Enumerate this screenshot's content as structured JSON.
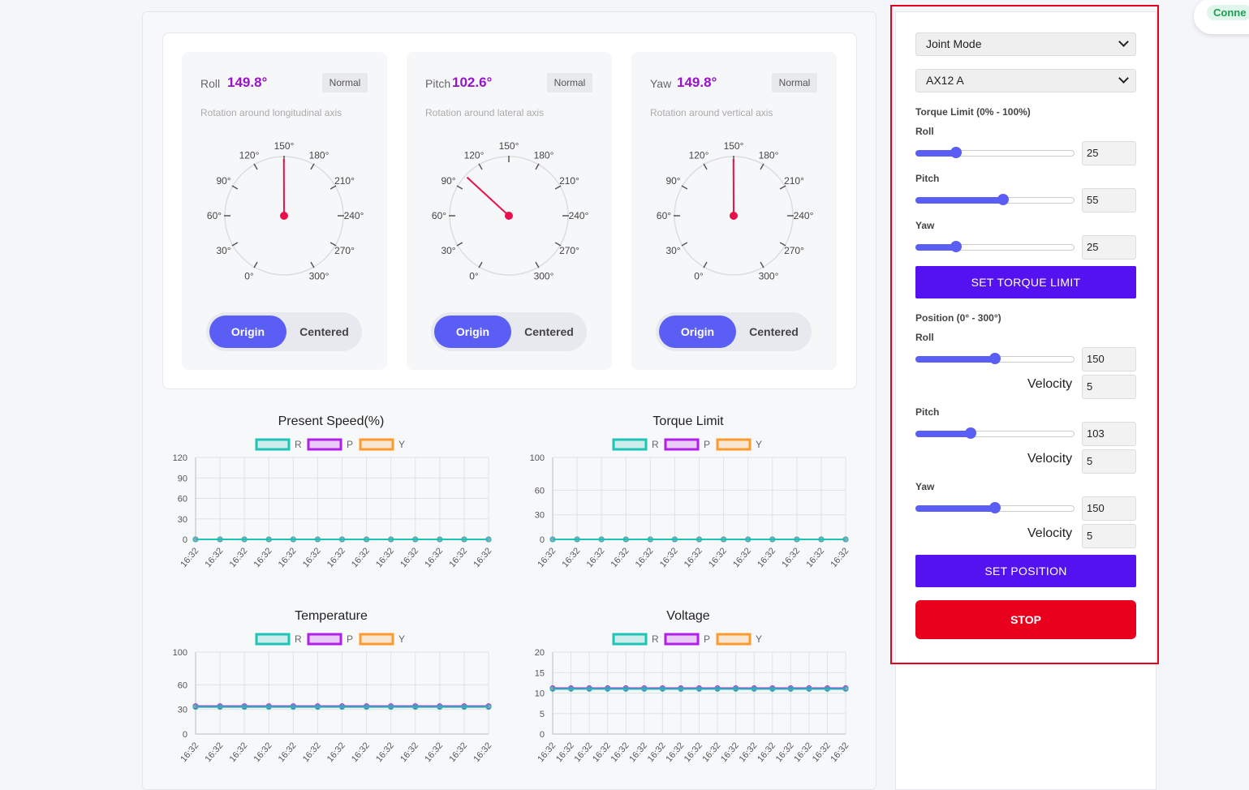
{
  "gauges": [
    {
      "name": "Roll",
      "value": "149.8°",
      "angle": 149.8,
      "status": "Normal",
      "description": "Rotation around longitudinal axis",
      "toggle": {
        "origin": "Origin",
        "centered": "Centered"
      }
    },
    {
      "name": "Pitch",
      "value": "102.6°",
      "angle": 102.6,
      "status": "Normal",
      "description": "Rotation around lateral axis",
      "toggle": {
        "origin": "Origin",
        "centered": "Centered"
      }
    },
    {
      "name": "Yaw",
      "value": "149.8°",
      "angle": 149.8,
      "status": "Normal",
      "description": "Rotation around vertical axis",
      "toggle": {
        "origin": "Origin",
        "centered": "Centered"
      }
    }
  ],
  "gauge_ticks": [
    "0°",
    "30°",
    "60°",
    "90°",
    "120°",
    "150°",
    "180°",
    "210°",
    "240°",
    "270°",
    "300°"
  ],
  "chart_data": [
    {
      "type": "line",
      "title": "Present Speed(%)",
      "yticks": [
        0,
        30,
        60,
        90,
        120
      ],
      "ylim": [
        0,
        120
      ],
      "x": [
        "16:32",
        "16:32",
        "16:32",
        "16:32",
        "16:32",
        "16:32",
        "16:32",
        "16:32",
        "16:32",
        "16:32",
        "16:32",
        "16:32",
        "16:32"
      ],
      "series": [
        {
          "name": "R",
          "values": [
            0,
            0,
            0,
            0,
            0,
            0,
            0,
            0,
            0,
            0,
            0,
            0,
            0
          ]
        },
        {
          "name": "P",
          "values": [
            0,
            0,
            0,
            0,
            0,
            0,
            0,
            0,
            0,
            0,
            0,
            0,
            0
          ]
        },
        {
          "name": "Y",
          "values": [
            0,
            0,
            0,
            0,
            0,
            0,
            0,
            0,
            0,
            0,
            0,
            0,
            0
          ]
        }
      ]
    },
    {
      "type": "line",
      "title": "Torque Limit",
      "yticks": [
        0,
        30,
        60,
        100
      ],
      "ylim": [
        0,
        100
      ],
      "x": [
        "16:32",
        "16:32",
        "16:32",
        "16:32",
        "16:32",
        "16:32",
        "16:32",
        "16:32",
        "16:32",
        "16:32",
        "16:32",
        "16:32",
        "16:32"
      ],
      "series": [
        {
          "name": "R",
          "values": [
            0,
            0,
            0,
            0,
            0,
            0,
            0,
            0,
            0,
            0,
            0,
            0,
            0
          ]
        },
        {
          "name": "P",
          "values": [
            0,
            0,
            0,
            0,
            0,
            0,
            0,
            0,
            0,
            0,
            0,
            0,
            0
          ]
        },
        {
          "name": "Y",
          "values": [
            0,
            0,
            0,
            0,
            0,
            0,
            0,
            0,
            0,
            0,
            0,
            0,
            0
          ]
        }
      ]
    },
    {
      "type": "line",
      "title": "Temperature",
      "yticks": [
        0,
        30,
        60,
        100
      ],
      "ylim": [
        0,
        100
      ],
      "x": [
        "16:32",
        "16:32",
        "16:32",
        "16:32",
        "16:32",
        "16:32",
        "16:32",
        "16:32",
        "16:32",
        "16:32",
        "16:32",
        "16:32",
        "16:32"
      ],
      "series": [
        {
          "name": "R",
          "values": [
            33,
            33,
            33,
            33,
            33,
            33,
            33,
            33,
            33,
            33,
            33,
            33,
            33
          ]
        },
        {
          "name": "P",
          "values": [
            34,
            34,
            34,
            34,
            34,
            34,
            34,
            34,
            34,
            34,
            34,
            34,
            34
          ]
        },
        {
          "name": "Y",
          "values": [
            33,
            33,
            33,
            33,
            33,
            33,
            33,
            33,
            33,
            33,
            33,
            33,
            33
          ]
        }
      ]
    },
    {
      "type": "line",
      "title": "Voltage",
      "yticks": [
        0,
        5,
        10,
        15,
        20
      ],
      "ylim": [
        0,
        20
      ],
      "x": [
        "16:32",
        "16:32",
        "16:32",
        "16:32",
        "16:32",
        "16:32",
        "16:32",
        "16:32",
        "16:32",
        "16:32",
        "16:32",
        "16:32",
        "16:32",
        "16:32",
        "16:32",
        "16:32",
        "16:32"
      ],
      "series": [
        {
          "name": "R",
          "values": [
            11,
            11,
            11,
            11,
            11,
            11,
            11,
            11,
            11,
            11,
            11,
            11,
            11,
            11,
            11,
            11,
            11
          ]
        },
        {
          "name": "P",
          "values": [
            11.2,
            11.2,
            11.2,
            11.2,
            11.2,
            11.2,
            11.2,
            11.2,
            11.2,
            11.2,
            11.2,
            11.2,
            11.2,
            11.2,
            11.2,
            11.2,
            11.2
          ]
        },
        {
          "name": "Y",
          "values": [
            11.2,
            11.2,
            11.2,
            11.2,
            11.2,
            11.2,
            11.2,
            11.2,
            11.2,
            11.2,
            11.2,
            11.2,
            11.2,
            11.2,
            11.2,
            11.2,
            11.2
          ]
        }
      ]
    }
  ],
  "series_colors": {
    "R": "#1fc3b4",
    "P": "#b11ee8",
    "Y": "#ff9a2e"
  },
  "controls": {
    "mode_select": "Joint Mode",
    "motor_select": "AX12 A",
    "torque_title": "Torque Limit (0% - 100%)",
    "torque": [
      {
        "label": "Roll",
        "value": "25",
        "fraction": 0.25
      },
      {
        "label": "Pitch",
        "value": "55",
        "fraction": 0.55
      },
      {
        "label": "Yaw",
        "value": "25",
        "fraction": 0.25
      }
    ],
    "set_torque_label": "SET TORQUE LIMIT",
    "position_title": "Position (0° - 300°)",
    "position": [
      {
        "label": "Roll",
        "value": "150",
        "fraction": 0.5,
        "velocity_label": "Velocity",
        "velocity": "5"
      },
      {
        "label": "Pitch",
        "value": "103",
        "fraction": 0.343,
        "velocity_label": "Velocity",
        "velocity": "5"
      },
      {
        "label": "Yaw",
        "value": "150",
        "fraction": 0.5,
        "velocity_label": "Velocity",
        "velocity": "5"
      }
    ],
    "set_position_label": "SET POSITION",
    "stop_label": "STOP"
  },
  "connection_status": "Conne"
}
